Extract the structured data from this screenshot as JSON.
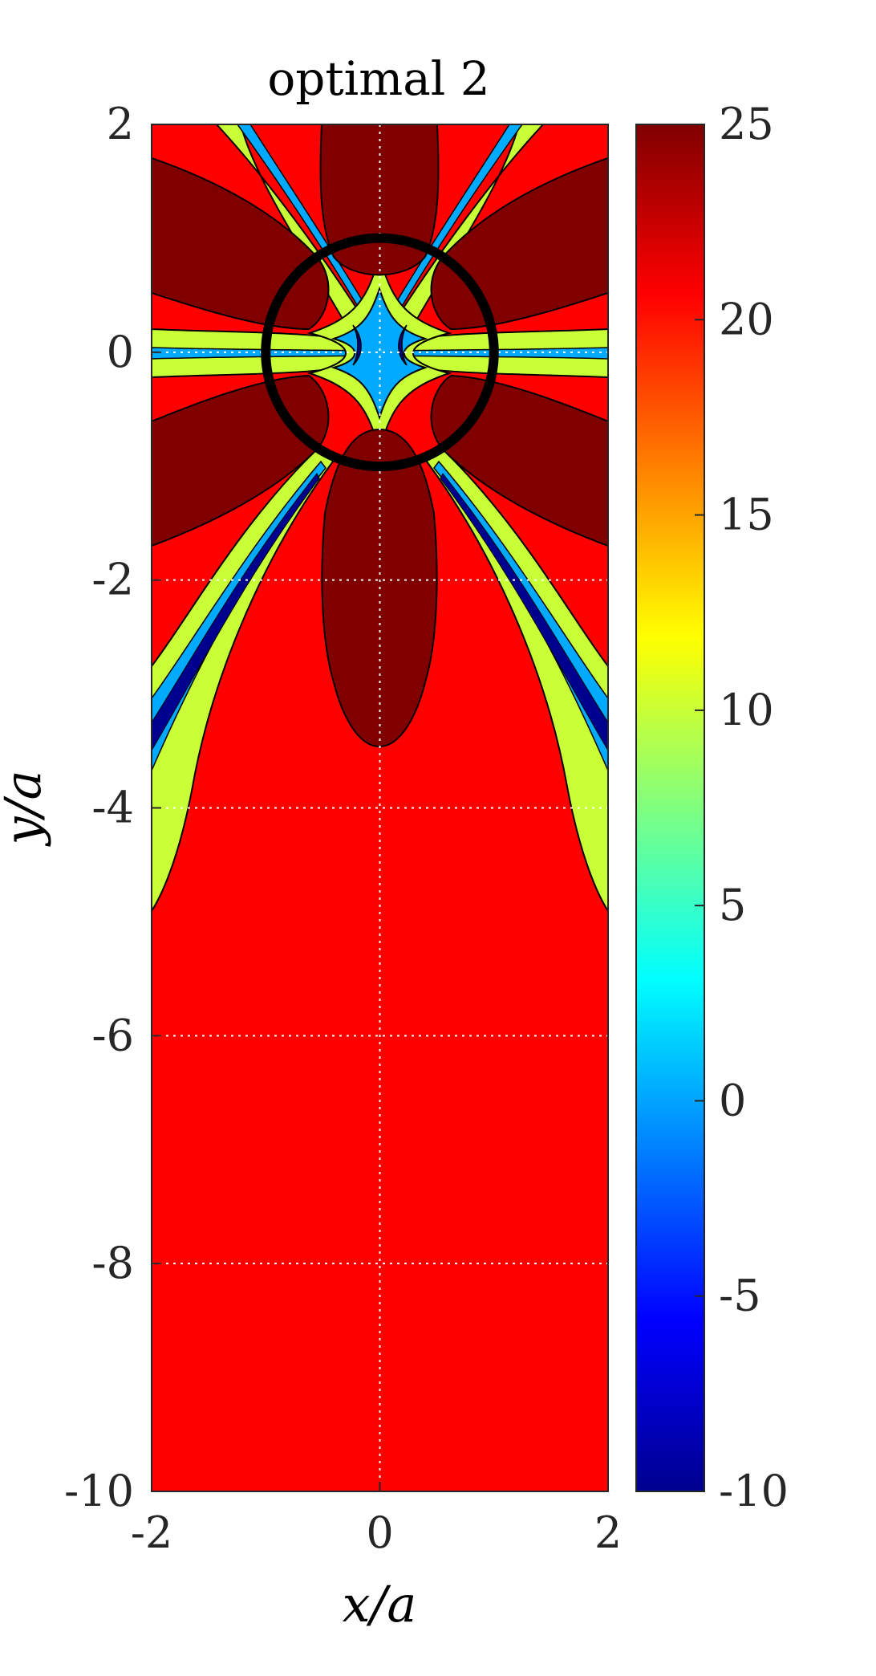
{
  "chart_data": {
    "type": "heatmap",
    "title": "optimal 2",
    "xlabel": "x/a",
    "ylabel": "y/a",
    "xlim": [
      -2,
      2
    ],
    "ylim": [
      -10,
      2
    ],
    "xticks": [
      -2,
      0,
      2
    ],
    "yticks": [
      2,
      0,
      -2,
      -4,
      -6,
      -8,
      -10
    ],
    "grid": true,
    "circle": {
      "cx": 0,
      "cy": 0,
      "r": 1
    },
    "colorbar": {
      "colormap": "jet",
      "clim": [
        -10,
        25
      ],
      "ticks": [
        25,
        20,
        15,
        10,
        5,
        0,
        -5,
        -10
      ]
    },
    "contour_levels": [
      {
        "value": 25,
        "color": "#800000"
      },
      {
        "value": 20,
        "color": "#ff0000"
      },
      {
        "value": 10,
        "color": "#c8ff37"
      },
      {
        "value": 0,
        "color": "#00aaff"
      },
      {
        "value": -5,
        "color": "#0050ff"
      },
      {
        "value": -10,
        "color": "#00008f"
      }
    ]
  }
}
